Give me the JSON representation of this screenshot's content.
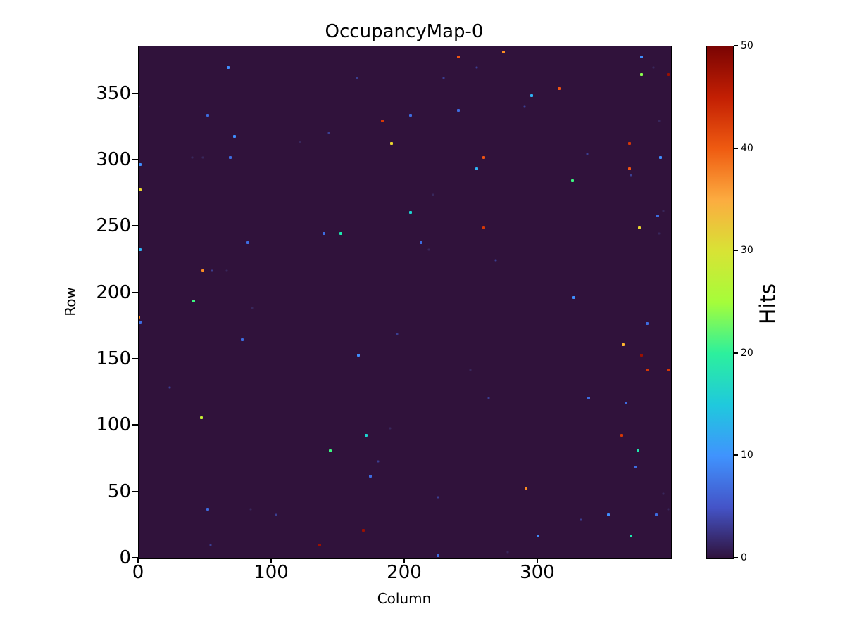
{
  "title": "OccupancyMap-0",
  "axes": {
    "xlabel": "Column",
    "ylabel": "Row",
    "x_tick_values": [
      0,
      100,
      200,
      300
    ],
    "y_tick_values": [
      0,
      50,
      100,
      150,
      200,
      250,
      300,
      350
    ]
  },
  "colorbar": {
    "label": "Hits",
    "tick_values": [
      0,
      10,
      20,
      30,
      40,
      50
    ],
    "min": 0,
    "max": 50,
    "colormap": "turbo",
    "gradient_bottom_to_top": [
      "#30123b",
      "#4454c8",
      "#4093fe",
      "#1fc9dd",
      "#2cf09d",
      "#a5fd3a",
      "#d8e335",
      "#fcac40",
      "#ef5b11",
      "#c31f03",
      "#7a0403"
    ]
  },
  "chart_data": {
    "type": "heatmap",
    "title": "OccupancyMap-0",
    "xlabel": "Column",
    "ylabel": "Row",
    "colorbar_label": "Hits",
    "xlim": [
      0,
      400
    ],
    "ylim": [
      0,
      384
    ],
    "zlim": [
      0,
      50
    ],
    "background_value": 0,
    "background_color": "#30123b",
    "points_format": [
      "col",
      "row",
      "hits",
      "color"
    ],
    "points": [
      [
        67,
        370,
        9,
        "#3f8dfe"
      ],
      [
        52,
        334,
        7,
        "#3d6ce0"
      ],
      [
        72,
        318,
        9,
        "#3f8dfe"
      ],
      [
        121,
        314,
        3,
        "#3b2d64"
      ],
      [
        40,
        302,
        3,
        "#3b2d64"
      ],
      [
        48,
        302,
        3,
        "#3b2d64"
      ],
      [
        69,
        302,
        7,
        "#3d6ce0"
      ],
      [
        1,
        297,
        9,
        "#3f8dfe"
      ],
      [
        1,
        278,
        30,
        "#e8d42f"
      ],
      [
        0,
        341,
        5,
        "#3f4ba8"
      ],
      [
        240,
        378,
        42,
        "#f05412"
      ],
      [
        254,
        370,
        5,
        "#3f4ba8"
      ],
      [
        164,
        362,
        5,
        "#3f4ba8"
      ],
      [
        229,
        362,
        5,
        "#3f4ba8"
      ],
      [
        240,
        338,
        7,
        "#3d6ce0"
      ],
      [
        204,
        334,
        7,
        "#3d6ce0"
      ],
      [
        183,
        330,
        45,
        "#d63806"
      ],
      [
        143,
        321,
        5,
        "#3f4ba8"
      ],
      [
        190,
        313,
        30,
        "#e8d42f"
      ],
      [
        259,
        302,
        42,
        "#f05412"
      ],
      [
        254,
        294,
        12,
        "#2fb2f4"
      ],
      [
        221,
        274,
        3,
        "#3b2d64"
      ],
      [
        204,
        261,
        15,
        "#1dd3cf"
      ],
      [
        274,
        382,
        38,
        "#fb8c22"
      ],
      [
        378,
        378,
        9,
        "#3f8dfe"
      ],
      [
        387,
        370,
        3,
        "#3b2d64"
      ],
      [
        378,
        365,
        25,
        "#8afe4e"
      ],
      [
        398,
        365,
        48,
        "#9c1001"
      ],
      [
        316,
        354,
        42,
        "#f05412"
      ],
      [
        295,
        349,
        12,
        "#2fb2f4"
      ],
      [
        290,
        341,
        5,
        "#3f4ba8"
      ],
      [
        391,
        330,
        3,
        "#3b2d64"
      ],
      [
        369,
        313,
        45,
        "#d63806"
      ],
      [
        337,
        305,
        5,
        "#3f4ba8"
      ],
      [
        392,
        302,
        9,
        "#3f8dfe"
      ],
      [
        369,
        294,
        42,
        "#f05412"
      ],
      [
        370,
        289,
        5,
        "#3f4ba8"
      ],
      [
        326,
        285,
        22,
        "#3cf87f"
      ],
      [
        390,
        258,
        7,
        "#3d6ce0"
      ],
      [
        394,
        262,
        3,
        "#3b2d64"
      ],
      [
        1,
        233,
        12,
        "#2fb2f4"
      ],
      [
        82,
        238,
        7,
        "#3d6ce0"
      ],
      [
        48,
        217,
        38,
        "#fb8c22"
      ],
      [
        55,
        217,
        5,
        "#3f4ba8"
      ],
      [
        66,
        217,
        3,
        "#3b2d64"
      ],
      [
        41,
        194,
        22,
        "#3cf87f"
      ],
      [
        85,
        189,
        3,
        "#3b2d64"
      ],
      [
        0,
        182,
        38,
        "#fb8c22"
      ],
      [
        1,
        178,
        7,
        "#3d6ce0"
      ],
      [
        78,
        165,
        7,
        "#3d6ce0"
      ],
      [
        23,
        129,
        5,
        "#3f4ba8"
      ],
      [
        259,
        249,
        45,
        "#d63806"
      ],
      [
        139,
        245,
        7,
        "#3d6ce0"
      ],
      [
        152,
        245,
        18,
        "#1ee8ae"
      ],
      [
        212,
        238,
        7,
        "#3d6ce0"
      ],
      [
        218,
        233,
        3,
        "#3b2d64"
      ],
      [
        194,
        169,
        5,
        "#3f4ba8"
      ],
      [
        165,
        153,
        9,
        "#3f8dfe"
      ],
      [
        249,
        142,
        3,
        "#3b2d64"
      ],
      [
        376,
        249,
        30,
        "#e8d42f"
      ],
      [
        391,
        245,
        3,
        "#3b2d64"
      ],
      [
        268,
        225,
        5,
        "#3f4ba8"
      ],
      [
        327,
        197,
        9,
        "#3f8dfe"
      ],
      [
        382,
        177,
        7,
        "#3d6ce0"
      ],
      [
        364,
        161,
        35,
        "#fdb52f"
      ],
      [
        378,
        153,
        48,
        "#9c1001"
      ],
      [
        382,
        142,
        45,
        "#d63806"
      ],
      [
        398,
        142,
        45,
        "#d63806"
      ],
      [
        47,
        106,
        27,
        "#c5ee33"
      ],
      [
        52,
        37,
        7,
        "#3d6ce0"
      ],
      [
        84,
        37,
        3,
        "#3b2d64"
      ],
      [
        103,
        33,
        5,
        "#3f4ba8"
      ],
      [
        54,
        10,
        5,
        "#3f4ba8"
      ],
      [
        263,
        121,
        5,
        "#3f4ba8"
      ],
      [
        189,
        98,
        3,
        "#3b2d64"
      ],
      [
        171,
        93,
        15,
        "#1dd3cf"
      ],
      [
        144,
        81,
        22,
        "#3cf87f"
      ],
      [
        180,
        73,
        5,
        "#3f4ba8"
      ],
      [
        174,
        62,
        7,
        "#3d6ce0"
      ],
      [
        225,
        46,
        5,
        "#3f4ba8"
      ],
      [
        169,
        21,
        48,
        "#9c1001"
      ],
      [
        136,
        10,
        48,
        "#9c1001"
      ],
      [
        225,
        2,
        7,
        "#3d6ce0"
      ],
      [
        338,
        121,
        7,
        "#3d6ce0"
      ],
      [
        366,
        117,
        7,
        "#3d6ce0"
      ],
      [
        363,
        93,
        45,
        "#d63806"
      ],
      [
        375,
        81,
        18,
        "#1ee8ae"
      ],
      [
        373,
        69,
        7,
        "#3d6ce0"
      ],
      [
        291,
        53,
        38,
        "#fb8c22"
      ],
      [
        394,
        49,
        3,
        "#3b2d64"
      ],
      [
        398,
        37,
        3,
        "#3b2d64"
      ],
      [
        353,
        33,
        9,
        "#3f8dfe"
      ],
      [
        389,
        33,
        7,
        "#3d6ce0"
      ],
      [
        332,
        29,
        5,
        "#3f4ba8"
      ],
      [
        300,
        17,
        9,
        "#3f8dfe"
      ],
      [
        370,
        17,
        18,
        "#1ee8ae"
      ],
      [
        277,
        5,
        3,
        "#3b2d64"
      ]
    ]
  }
}
